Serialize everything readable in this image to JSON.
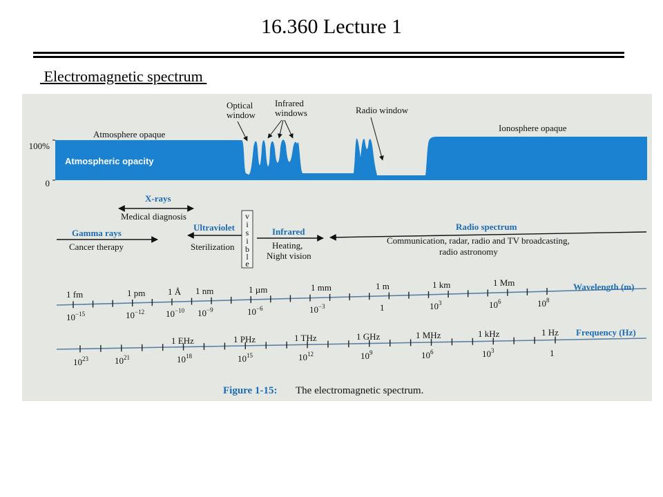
{
  "slide": {
    "title": "16.360 Lecture 1",
    "subtitle": " Electromagnetic spectrum "
  },
  "figure": {
    "colors": {
      "opacity_fill": "#1a82d0",
      "accent_text": "#1d6bb5",
      "axis_line": "#5a7fa5",
      "paper": "#e5e8e2"
    },
    "opacity_panel": {
      "y_top_label": "100%",
      "y_bottom_label": "0",
      "fill_label": "Atmospheric opacity",
      "atmosphere_opaque": "Atmosphere opaque",
      "optical_window": [
        "Optical",
        "window"
      ],
      "infrared_windows": [
        "Infrared",
        "windows"
      ],
      "radio_window": "Radio window",
      "ionosphere_opaque": "Ionosphere opaque"
    },
    "bands": {
      "xrays": "X-rays",
      "xrays_use": "Medical diagnosis",
      "gamma": "Gamma rays",
      "gamma_use": "Cancer therapy",
      "uv": "Ultraviolet",
      "uv_use": "Sterilization",
      "visible_letters": [
        "v",
        "i",
        "s",
        "i",
        "b",
        "l",
        "e"
      ],
      "ir": "Infrared",
      "ir_use": [
        "Heating,",
        "Night vision"
      ],
      "radio": "Radio spectrum",
      "radio_use": [
        "Communication, radar, radio and TV broadcasting,",
        "radio astronomy"
      ]
    },
    "wavelength_axis": {
      "label": "Wavelength (m)",
      "units": [
        "1 fm",
        "1 pm",
        "1 Å",
        "1 nm",
        "1 µm",
        "1 mm",
        "1 m",
        "1 km",
        "1 Mm"
      ],
      "powers": [
        {
          "base": "10",
          "exp": "−15"
        },
        {
          "base": "10",
          "exp": "−12"
        },
        {
          "base": "10",
          "exp": "−10"
        },
        {
          "base": "10",
          "exp": "−9"
        },
        {
          "base": "10",
          "exp": "−6"
        },
        {
          "base": "10",
          "exp": "−3"
        },
        {
          "base": "1",
          "exp": ""
        },
        {
          "base": "10",
          "exp": "3"
        },
        {
          "base": "10",
          "exp": "6"
        },
        {
          "base": "10",
          "exp": "8"
        }
      ]
    },
    "frequency_axis": {
      "label": "Frequency (Hz)",
      "units": [
        "1 EHz",
        "1 PHz",
        "1 THz",
        "1 GHz",
        "1 MHz",
        "1 kHz",
        "1 Hz"
      ],
      "powers": [
        {
          "base": "10",
          "exp": "23"
        },
        {
          "base": "10",
          "exp": "21"
        },
        {
          "base": "10",
          "exp": "18"
        },
        {
          "base": "10",
          "exp": "15"
        },
        {
          "base": "10",
          "exp": "12"
        },
        {
          "base": "10",
          "exp": "9"
        },
        {
          "base": "10",
          "exp": "6"
        },
        {
          "base": "10",
          "exp": "3"
        },
        {
          "base": "1",
          "exp": ""
        }
      ]
    },
    "caption_label": "Figure 1-15:",
    "caption_text": "The electromagnetic spectrum."
  }
}
